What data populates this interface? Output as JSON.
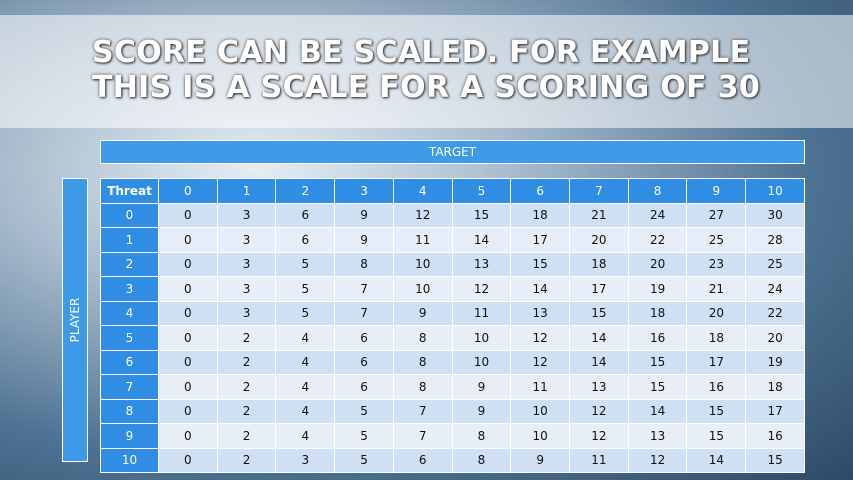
{
  "title": {
    "lines": [
      "SCORE CAN BE SCALED. FOR EXAMPLE",
      "THIS IS A SCALE FOR A SCORING OF 30"
    ]
  },
  "table": {
    "column_label": "TARGET",
    "row_label": "PLAYER",
    "header": [
      "Threat",
      "0",
      "1",
      "2",
      "3",
      "4",
      "5",
      "6",
      "7",
      "8",
      "9",
      "10"
    ],
    "rows": [
      {
        "label": "0",
        "cells": [
          0,
          3,
          6,
          9,
          12,
          15,
          18,
          21,
          24,
          27,
          30
        ]
      },
      {
        "label": "1",
        "cells": [
          0,
          3,
          6,
          9,
          11,
          14,
          17,
          20,
          22,
          25,
          28
        ]
      },
      {
        "label": "2",
        "cells": [
          0,
          3,
          5,
          8,
          10,
          13,
          15,
          18,
          20,
          23,
          25
        ]
      },
      {
        "label": "3",
        "cells": [
          0,
          3,
          5,
          7,
          10,
          12,
          14,
          17,
          19,
          21,
          24
        ]
      },
      {
        "label": "4",
        "cells": [
          0,
          3,
          5,
          7,
          9,
          11,
          13,
          15,
          18,
          20,
          22
        ]
      },
      {
        "label": "5",
        "cells": [
          0,
          2,
          4,
          6,
          8,
          10,
          12,
          14,
          16,
          18,
          20
        ]
      },
      {
        "label": "6",
        "cells": [
          0,
          2,
          4,
          6,
          8,
          10,
          12,
          14,
          15,
          17,
          19
        ]
      },
      {
        "label": "7",
        "cells": [
          0,
          2,
          4,
          6,
          8,
          9,
          11,
          13,
          15,
          16,
          18
        ]
      },
      {
        "label": "8",
        "cells": [
          0,
          2,
          4,
          5,
          7,
          9,
          10,
          12,
          14,
          15,
          17
        ]
      },
      {
        "label": "9",
        "cells": [
          0,
          2,
          4,
          5,
          7,
          8,
          10,
          12,
          13,
          15,
          16
        ]
      },
      {
        "label": "10",
        "cells": [
          0,
          2,
          3,
          5,
          6,
          8,
          9,
          11,
          12,
          14,
          15
        ]
      }
    ]
  }
}
